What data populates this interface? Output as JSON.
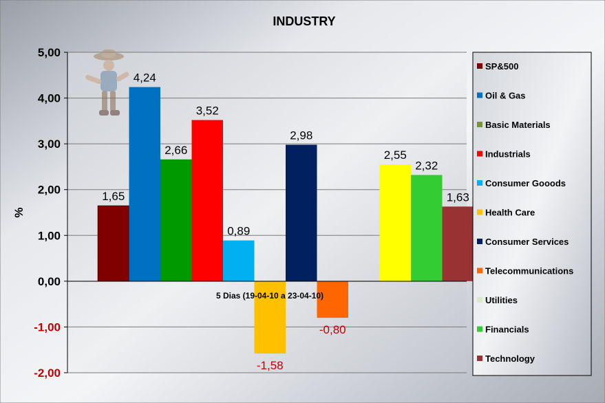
{
  "chart_data": {
    "type": "bar",
    "title": "INDUSTRY",
    "ylabel": "%",
    "xlabel": "",
    "ylim": [
      -2,
      5
    ],
    "yticks": [
      "5,00",
      "4,00",
      "3,00",
      "2,00",
      "1,00",
      "0,00",
      "-1,00",
      "-2,00"
    ],
    "categories": [
      "5 Dias (19-04-10 a 23-04-10)"
    ],
    "series": [
      {
        "name": "SP&500",
        "value": 1.65,
        "label": "1,65",
        "color": "#800000"
      },
      {
        "name": "Oil & Gas",
        "value": 4.24,
        "label": "4,24",
        "color": "#0070C0"
      },
      {
        "name": "Basic Materials",
        "value": 2.66,
        "label": "2,66",
        "color": "#009900"
      },
      {
        "name": "Industrials",
        "value": 3.52,
        "label": "3,52",
        "color": "#FF0000"
      },
      {
        "name": "Consumer Gooods",
        "value": 0.89,
        "label": "0,89",
        "color": "#00B0F0"
      },
      {
        "name": "Health Care",
        "value": -1.58,
        "label": "-1,58",
        "color": "#FFC000"
      },
      {
        "name": "Consumer Services",
        "value": 2.98,
        "label": "2,98",
        "color": "#002060"
      },
      {
        "name": "Telecommunications",
        "value": -0.8,
        "label": "-0,80",
        "color": "#FF6600"
      },
      {
        "name": "Utilities",
        "value": 0,
        "label": "",
        "color": "#E0F0D0"
      },
      {
        "name": "Financials",
        "value": 2.55,
        "label": "2,55",
        "color": "#FFFF00"
      },
      {
        "name": "Technology",
        "value": 2.32,
        "label": "2,32",
        "color": "#33CC33"
      },
      {
        "name": "",
        "value": 1.63,
        "label": "1,63",
        "color": "#993333"
      }
    ],
    "legend": {
      "placement": "right",
      "entries": [
        {
          "name": "SP&500",
          "color": "#800000"
        },
        {
          "name": "Oil & Gas",
          "color": "#0070C0"
        },
        {
          "name": "Basic Materials",
          "color": "#77933C"
        },
        {
          "name": "Industrials",
          "color": "#FF0000"
        },
        {
          "name": "Consumer Gooods",
          "color": "#00B0F0"
        },
        {
          "name": "Health Care",
          "color": "#FFC000"
        },
        {
          "name": "Consumer Services",
          "color": "#002060"
        },
        {
          "name": "Telecommunications",
          "color": "#FF6600"
        },
        {
          "name": "Utilities",
          "color": "#D8E8C8"
        },
        {
          "name": "Financials",
          "color": "#33CC33"
        },
        {
          "name": "Technology",
          "color": "#993333"
        }
      ]
    },
    "negative_tick_color": "#C00000",
    "negative_label_color": "#C00000",
    "grid": true
  }
}
